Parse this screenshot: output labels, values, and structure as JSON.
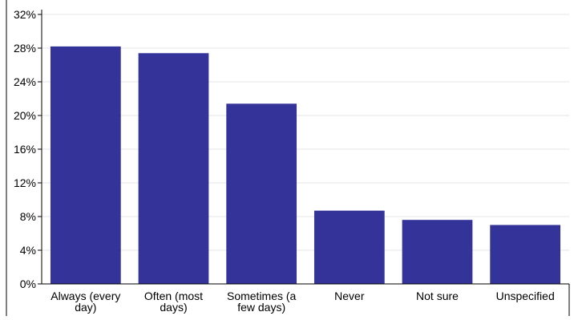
{
  "chart_data": {
    "type": "bar",
    "categories": [
      [
        "Always (every",
        "day)"
      ],
      [
        "Often (most",
        "days)"
      ],
      [
        "Sometimes (a",
        "few days)"
      ],
      [
        "Never"
      ],
      [
        "Not sure"
      ],
      [
        "Unspecified"
      ]
    ],
    "values": [
      28.2,
      27.4,
      21.4,
      8.7,
      7.6,
      7.0
    ],
    "ylim": [
      0,
      32
    ],
    "yticks": [
      0,
      4,
      8,
      12,
      16,
      20,
      24,
      28,
      32
    ],
    "ytick_suffix": "%",
    "grid": true,
    "title": "",
    "xlabel": "",
    "ylabel": "",
    "colors": {
      "bar": "#333399",
      "grid": "#e6e6e6",
      "axis": "#000000"
    }
  }
}
